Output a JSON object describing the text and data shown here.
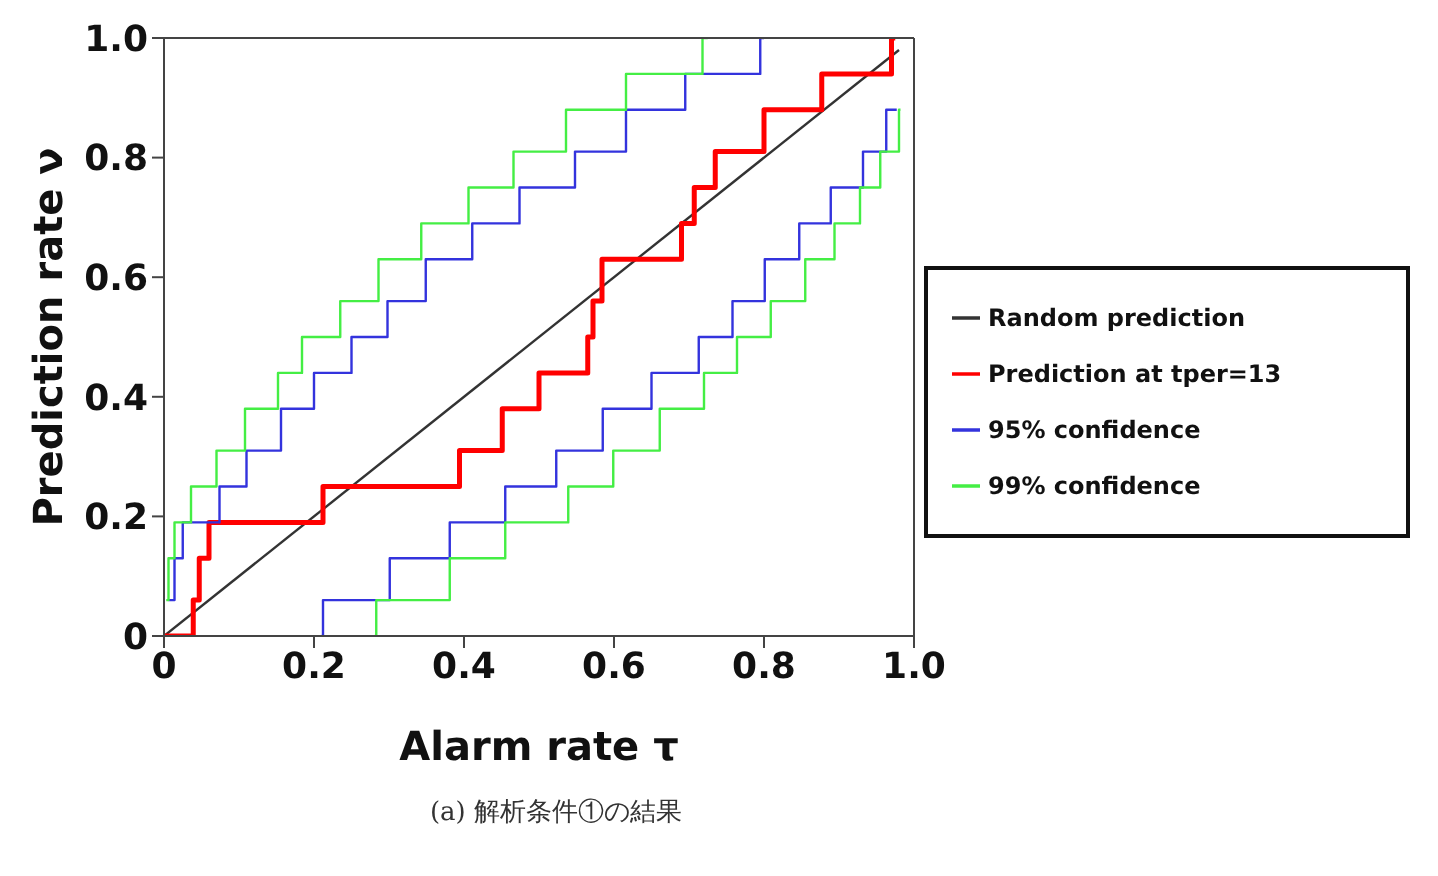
{
  "chart_data": {
    "type": "line",
    "xlabel": "Alarm rate  τ",
    "ylabel": "Prediction rate ν",
    "xlim": [
      0,
      1
    ],
    "ylim": [
      0,
      1
    ],
    "xticks": [
      0,
      0.2,
      0.4,
      0.6,
      0.8,
      {
        "value": 1,
        "label": "1.0"
      }
    ],
    "yticks": [
      0,
      0.2,
      0.4,
      0.6,
      0.8,
      {
        "value": 1,
        "label": "1.0"
      }
    ],
    "grid": false,
    "legend": "right",
    "marker": "none",
    "annotations": [
      "(a) 解析条件①の結果"
    ],
    "series": [
      {
        "name": "Random prediction",
        "color": "#333333",
        "x": [
          0,
          0.98
        ],
        "values": [
          0,
          0.98
        ]
      },
      {
        "name": "Prediction at tper=13",
        "type": "step",
        "color": "#ff0000",
        "x": [
          0,
          0.039,
          0.047,
          0.06,
          0.212,
          0.394,
          0.451,
          0.5,
          0.565,
          0.572,
          0.584,
          0.69,
          0.707,
          0.735,
          0.8,
          0.877,
          0.97,
          0.975
        ],
        "values": [
          0,
          0.06,
          0.13,
          0.19,
          0.25,
          0.31,
          0.38,
          0.44,
          0.5,
          0.56,
          0.63,
          0.69,
          0.75,
          0.81,
          0.88,
          0.94,
          1,
          1
        ]
      },
      {
        "name": "95% confidence",
        "type": "step",
        "color": "#3333dd",
        "x": [
          0.006,
          0.014,
          0.025,
          0.074,
          0.11,
          0.156,
          0.2,
          0.25,
          0.298,
          0.349,
          0.411,
          0.474,
          0.548,
          0.616,
          0.695,
          0.795,
          0.8
        ],
        "values": [
          0.06,
          0.13,
          0.19,
          0.25,
          0.31,
          0.38,
          0.44,
          0.5,
          0.56,
          0.63,
          0.69,
          0.75,
          0.81,
          0.88,
          0.94,
          1,
          1
        ]
      },
      {
        "name": "99% confidence",
        "type": "step",
        "color": "#44ee44",
        "x": [
          0.003,
          0.006,
          0.014,
          0.036,
          0.07,
          0.108,
          0.152,
          0.184,
          0.235,
          0.286,
          0.343,
          0.406,
          0.466,
          0.536,
          0.616,
          0.718,
          0.725
        ],
        "values": [
          0.06,
          0.13,
          0.19,
          0.25,
          0.31,
          0.38,
          0.44,
          0.5,
          0.56,
          0.63,
          0.69,
          0.75,
          0.81,
          0.88,
          0.94,
          1,
          1
        ]
      },
      {
        "type": "step",
        "color": "#3333dd",
        "x": [
          0.21,
          0.212,
          0.301,
          0.381,
          0.455,
          0.523,
          0.585,
          0.65,
          0.713,
          0.758,
          0.801,
          0.847,
          0.889,
          0.932,
          0.963,
          0.977
        ],
        "values": [
          0,
          0.06,
          0.13,
          0.19,
          0.25,
          0.31,
          0.38,
          0.44,
          0.5,
          0.56,
          0.63,
          0.69,
          0.75,
          0.81,
          0.88,
          0.88
        ]
      },
      {
        "type": "step",
        "color": "#44ee44",
        "x": [
          0.281,
          0.283,
          0.381,
          0.455,
          0.539,
          0.599,
          0.661,
          0.72,
          0.764,
          0.809,
          0.855,
          0.894,
          0.928,
          0.955,
          0.98,
          0.982
        ],
        "values": [
          0,
          0.06,
          0.13,
          0.19,
          0.25,
          0.31,
          0.38,
          0.44,
          0.5,
          0.56,
          0.63,
          0.69,
          0.75,
          0.81,
          0.88,
          0.88
        ]
      }
    ]
  }
}
